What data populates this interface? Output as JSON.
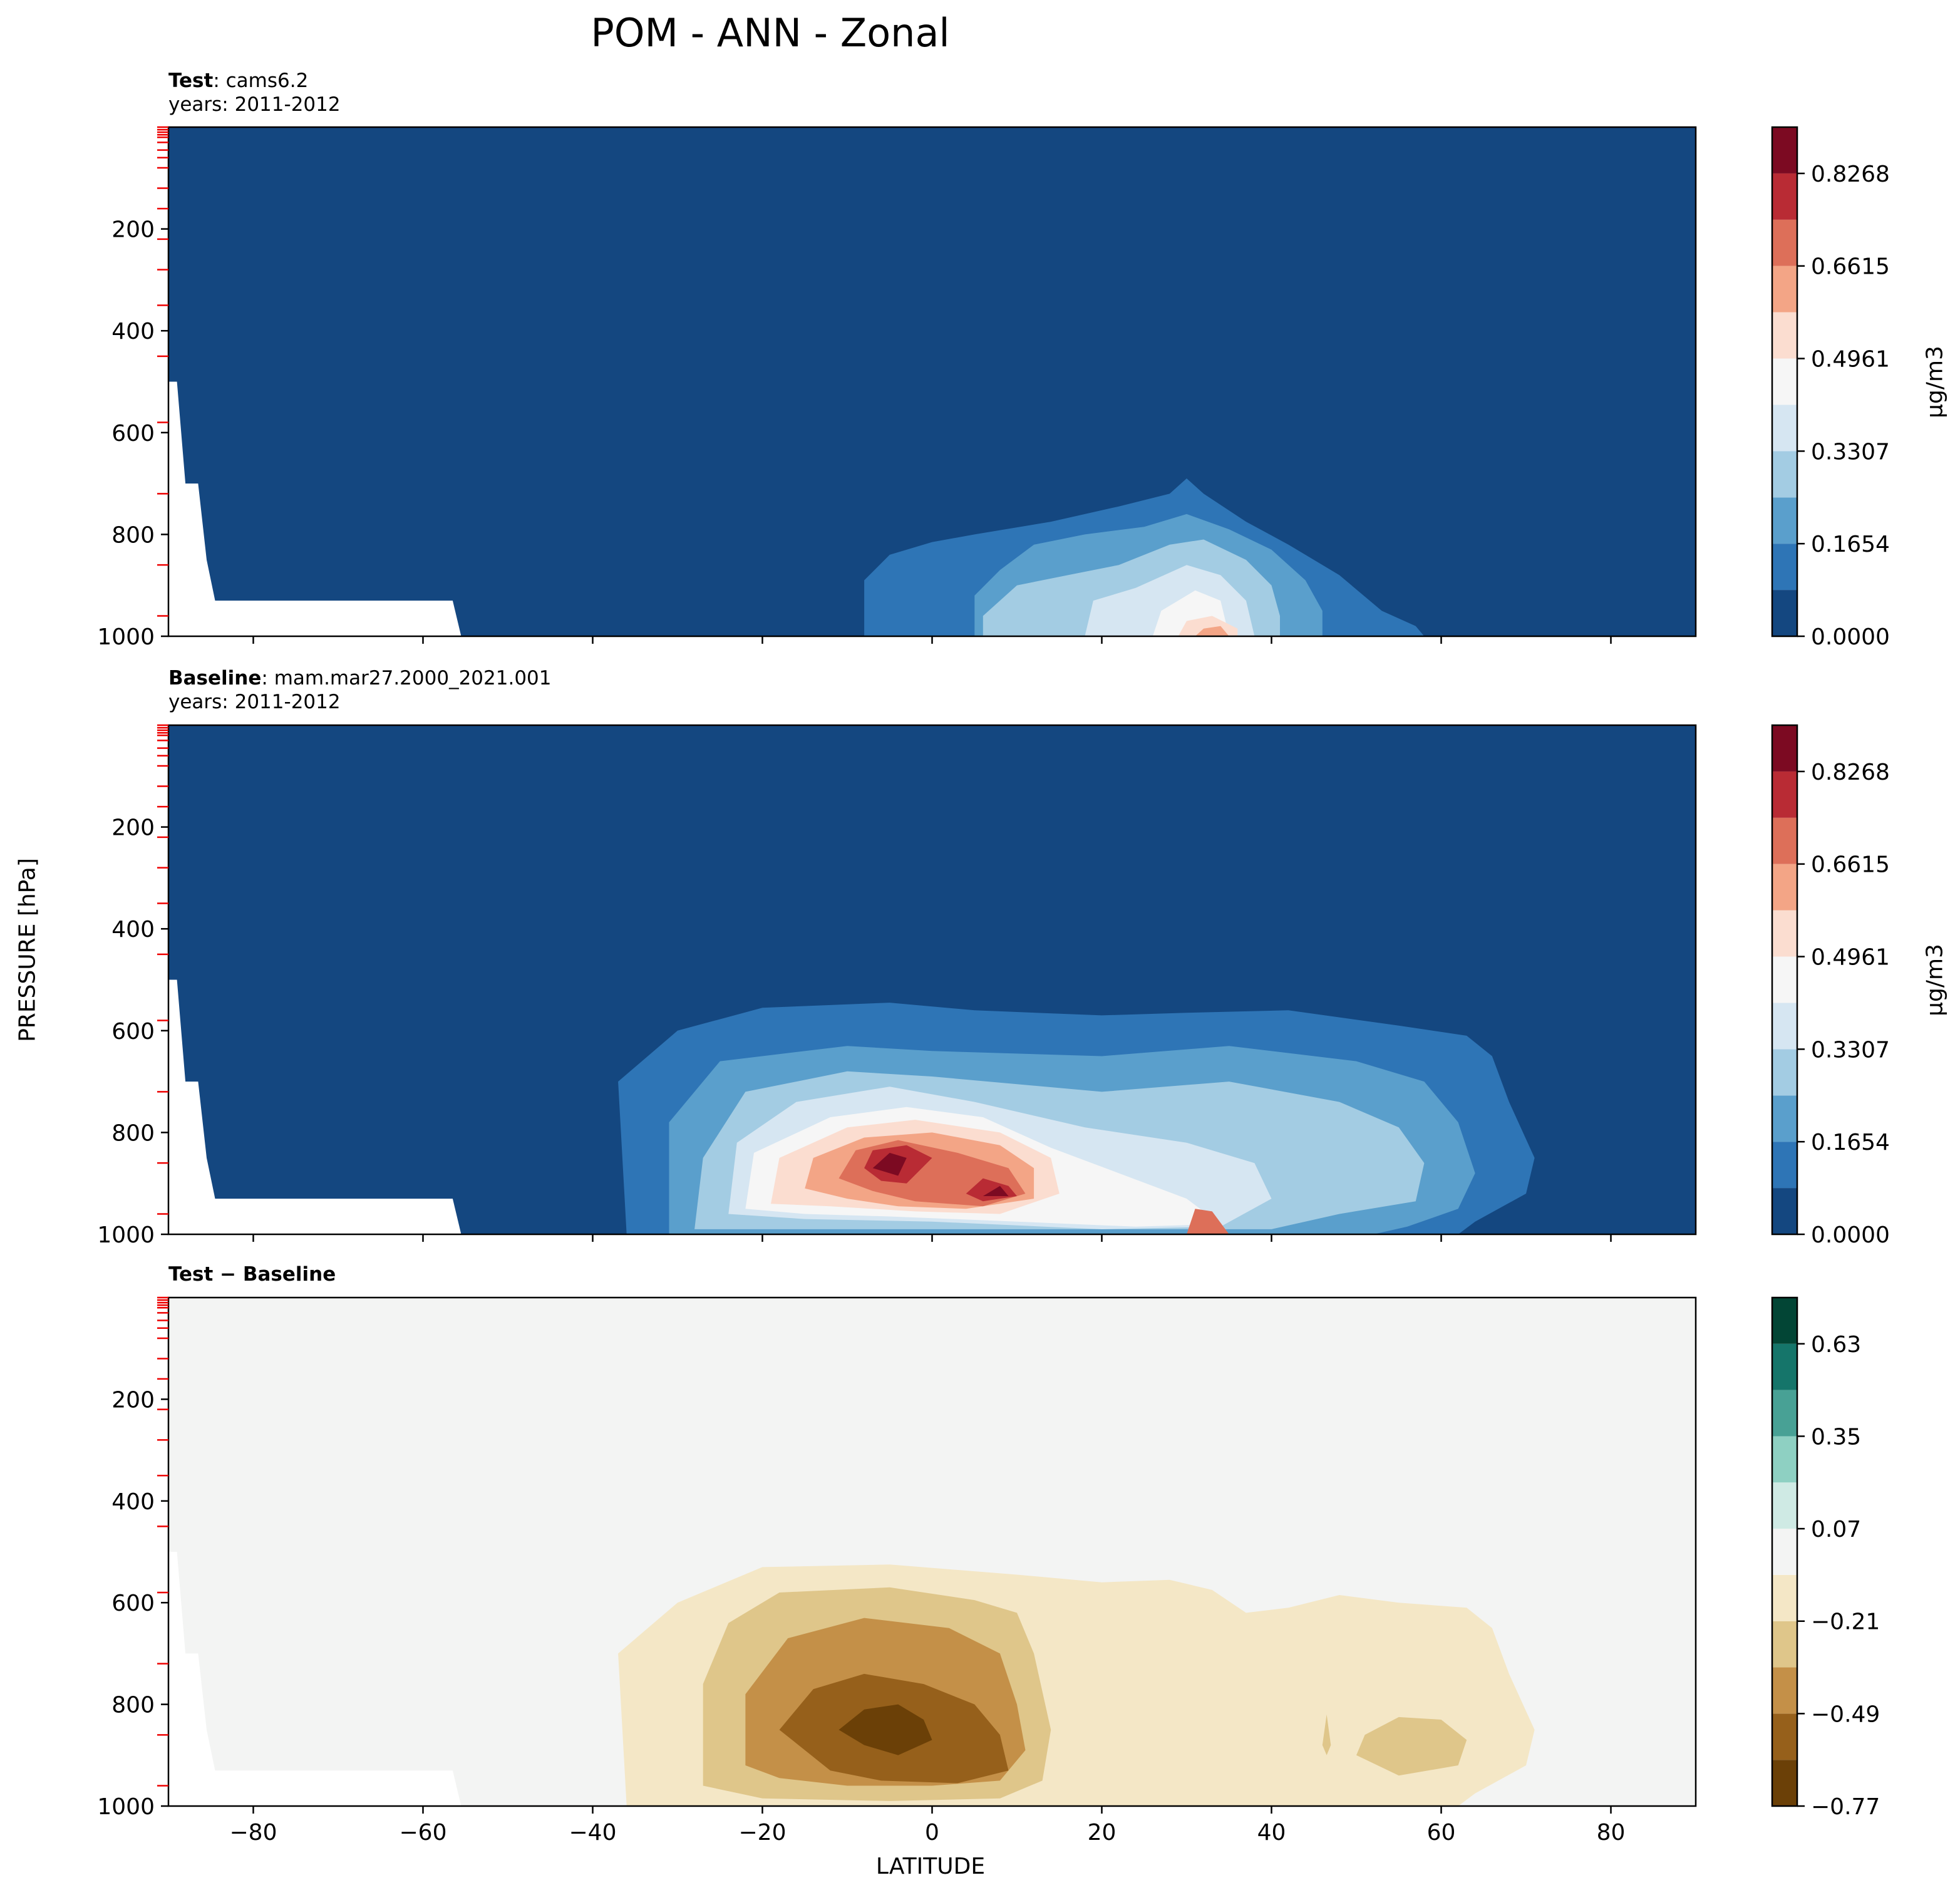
{
  "figure": {
    "title": "POM - ANN - Zonal",
    "ylabel": "PRESSURE [hPa]",
    "xlabel": "LATITUDE"
  },
  "panels": [
    {
      "label_bold": "Test",
      "label_rest": "cams6.2",
      "years": "years: 2011-2012",
      "colorbar_unit": "μg/m3"
    },
    {
      "label_bold": "Baseline",
      "label_rest": "mam.mar27.2000_2021.001",
      "years": "years: 2011-2012",
      "colorbar_unit": "μg/m3"
    },
    {
      "label_bold": "Test − Baseline",
      "label_rest": "",
      "years": "",
      "colorbar_unit": ""
    }
  ],
  "chart_data": [
    {
      "type": "heatmap",
      "title": "cams6.2",
      "xlabel": "",
      "ylabel": "",
      "xlim": [
        -90,
        90
      ],
      "ylim": [
        1000,
        0
      ],
      "x_ticks": [
        -80,
        -60,
        -40,
        -20,
        0,
        20,
        40,
        60,
        80
      ],
      "y_ticks": [
        200,
        400,
        600,
        800,
        1000
      ],
      "colorbar_ticks": [
        "0.0000",
        "0.1654",
        "0.3307",
        "0.4961",
        "0.6615",
        "0.8268"
      ],
      "colorbar_levels": [
        0,
        0.0827,
        0.1654,
        0.248,
        0.3307,
        0.4134,
        0.4961,
        0.5788,
        0.6615,
        0.7441,
        0.8268,
        0.9095
      ],
      "colors": [
        "#144780",
        "#2e75b6",
        "#5a9fcc",
        "#a3cce3",
        "#d6e6f2",
        "#f6f6f6",
        "#fbddd0",
        "#f3a586",
        "#dd6f59",
        "#b92b34",
        "#7c0a22"
      ],
      "features": [
        {
          "region": "tropics to NH midlatitudes, 800-1000 hPa",
          "max_level": 0.7441,
          "peak_lat": 32,
          "peak_p": 990
        }
      ]
    },
    {
      "type": "heatmap",
      "title": "mam.mar27.2000_2021.001",
      "xlabel": "",
      "ylabel": "",
      "xlim": [
        -90,
        90
      ],
      "ylim": [
        1000,
        0
      ],
      "x_ticks": [
        -80,
        -60,
        -40,
        -20,
        0,
        20,
        40,
        60,
        80
      ],
      "y_ticks": [
        200,
        400,
        600,
        800,
        1000
      ],
      "colorbar_ticks": [
        "0.0000",
        "0.1654",
        "0.3307",
        "0.4961",
        "0.6615",
        "0.8268"
      ],
      "colorbar_levels": [
        0,
        0.0827,
        0.1654,
        0.248,
        0.3307,
        0.4134,
        0.4961,
        0.5788,
        0.6615,
        0.7441,
        0.8268,
        0.9095
      ],
      "colors": [
        "#144780",
        "#2e75b6",
        "#5a9fcc",
        "#a3cce3",
        "#d6e6f2",
        "#f6f6f6",
        "#fbddd0",
        "#f3a586",
        "#dd6f59",
        "#b92b34",
        "#7c0a22"
      ],
      "features": [
        {
          "region": "40S-70N, 550-1000 hPa",
          "max_level": 0.9095,
          "peak_lat": -5,
          "peak_p": 860
        },
        {
          "region": "second maximum",
          "max_level": 0.9095,
          "peak_lat": 6,
          "peak_p": 920
        }
      ]
    },
    {
      "type": "heatmap",
      "title": "Test − Baseline",
      "xlabel": "LATITUDE",
      "ylabel": "",
      "xlim": [
        -90,
        90
      ],
      "ylim": [
        1000,
        0
      ],
      "x_ticks": [
        -80,
        -60,
        -40,
        -20,
        0,
        20,
        40,
        60,
        80
      ],
      "y_ticks": [
        200,
        400,
        600,
        800,
        1000
      ],
      "colorbar_ticks": [
        "−0.77",
        "−0.49",
        "−0.21",
        "0.07",
        "0.35",
        "0.63"
      ],
      "colorbar_levels": [
        -0.77,
        -0.63,
        -0.49,
        -0.35,
        -0.21,
        -0.07,
        0.07,
        0.21,
        0.35,
        0.49,
        0.63,
        0.77
      ],
      "colors": [
        "#6b4007",
        "#96601b",
        "#c49048",
        "#dfc68a",
        "#f4e7c6",
        "#f3f4f3",
        "#cfeae4",
        "#8ed0c2",
        "#48a195",
        "#15756a",
        "#024535"
      ],
      "features": [
        {
          "region": "40S-70N, 500-1000 hPa",
          "min_level": -0.77,
          "trough_lat": -6,
          "trough_p": 850
        }
      ]
    }
  ]
}
